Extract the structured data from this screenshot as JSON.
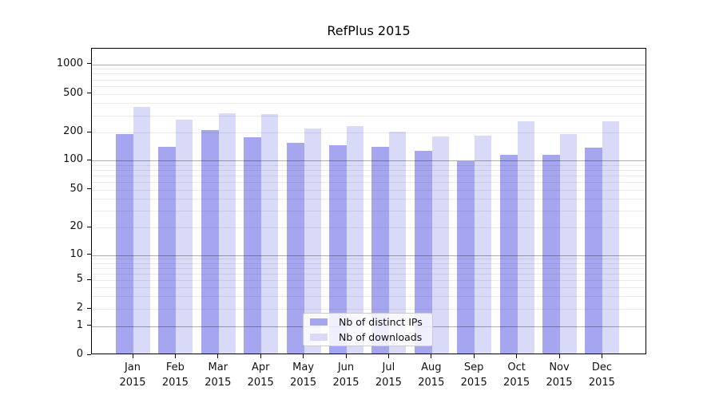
{
  "title": "RefPlus 2015",
  "chart_data": {
    "type": "bar",
    "title": "RefPlus 2015",
    "categories": [
      "Jan 2015",
      "Feb 2015",
      "Mar 2015",
      "Apr 2015",
      "May 2015",
      "Jun 2015",
      "Jul 2015",
      "Aug 2015",
      "Sep 2015",
      "Oct 2015",
      "Nov 2015",
      "Dec 2015"
    ],
    "series": [
      {
        "name": "Nb of distinct IPs",
        "color": "#a5a5f0",
        "values": [
          185,
          135,
          205,
          170,
          150,
          140,
          135,
          122,
          95,
          110,
          110,
          132
        ]
      },
      {
        "name": "Nb of downloads",
        "color": "#d9d9f8",
        "values": [
          355,
          260,
          305,
          300,
          212,
          225,
          196,
          174,
          178,
          250,
          186,
          250
        ]
      }
    ],
    "xlabel": "",
    "ylabel": "",
    "yscale": "symlog",
    "y_ticks": [
      0,
      1,
      2,
      5,
      10,
      20,
      50,
      100,
      200,
      500,
      1000
    ],
    "ylim": [
      0,
      1500
    ],
    "grid": true,
    "legend_position": "lower center inside plot"
  },
  "legend": {
    "items": [
      {
        "label": "Nb of distinct IPs",
        "color": "#a5a5f0"
      },
      {
        "label": "Nb of downloads",
        "color": "#d9d9f8"
      }
    ]
  },
  "colors": {
    "bar_dark": "#a5a5f0",
    "bar_light": "#d9d9f8",
    "grid_major": "#aaaaaa",
    "grid_minor": "#e9e9e9",
    "axis": "#000000",
    "background": "#ffffff"
  }
}
